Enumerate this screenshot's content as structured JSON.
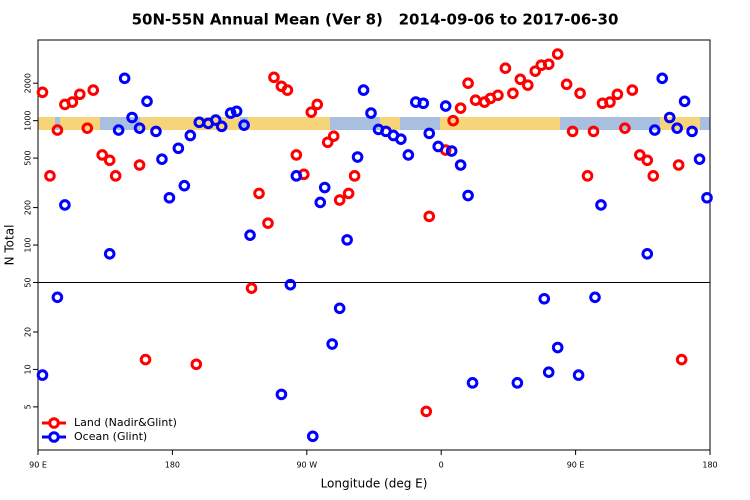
{
  "chart_data": {
    "type": "scatter",
    "title": "50N-55N Annual Mean (Ver 8)   2014-09-06 to 2017-06-30",
    "x_label": "Longitude (deg E)",
    "y_label": "N Total",
    "xlim": [
      90,
      540
    ],
    "xticks": [
      {
        "value": 90,
        "label": "90 E"
      },
      180,
      {
        "value": 270,
        "label": "90 W"
      },
      {
        "value": 360,
        "label": "0"
      },
      {
        "value": 450,
        "label": "90 E"
      },
      {
        "value": 540,
        "label": "180"
      }
    ],
    "ylim": [
      2.25,
      4450
    ],
    "log_y": true,
    "yticks": [
      5,
      10,
      20,
      50,
      100,
      200,
      500,
      1000,
      2000
    ],
    "reference_line": 50,
    "legend": "bottom left",
    "series": [
      {
        "name": "Land (Nadir&Glint)",
        "color": "#ff0000",
        "x": [
          93,
          98,
          103,
          108,
          113,
          118,
          123,
          127,
          133,
          138,
          142,
          158,
          162,
          196,
          233,
          238,
          244,
          248,
          253,
          257,
          263,
          268,
          273,
          277,
          284,
          288,
          292,
          298,
          302,
          350,
          352,
          363,
          368,
          373,
          378,
          383,
          389,
          393,
          398,
          403,
          408,
          413,
          418,
          423,
          427,
          432,
          438,
          444,
          448,
          453,
          458,
          462,
          468,
          473,
          478,
          483,
          488,
          493,
          498,
          502,
          519,
          521
        ],
        "values": [
          1690,
          360,
          840,
          1350,
          1410,
          1630,
          870,
          1760,
          530,
          480,
          360,
          440,
          12,
          11,
          45,
          260,
          150,
          2230,
          1890,
          1760,
          530,
          370,
          1170,
          1350,
          670,
          750,
          230,
          260,
          360,
          4.6,
          170,
          580,
          1000,
          1260,
          2000,
          1460,
          1410,
          1510,
          1600,
          2640,
          1660,
          2150,
          1930,
          2500,
          2790,
          2840,
          3430,
          1960,
          820,
          1660,
          360,
          820,
          1380,
          1410,
          1630,
          870,
          1760,
          530,
          480,
          360,
          440,
          12
        ]
      },
      {
        "name": "Ocean (Glint)",
        "color": "#0000ff",
        "x": [
          93,
          103,
          108,
          138,
          144,
          148,
          153,
          158,
          163,
          169,
          173,
          178,
          184,
          188,
          192,
          198,
          204,
          209,
          213,
          219,
          223,
          228,
          232,
          253,
          259,
          263,
          274,
          279,
          282,
          287,
          292,
          297,
          304,
          308,
          313,
          318,
          323,
          328,
          333,
          338,
          343,
          348,
          352,
          358,
          363,
          367,
          373,
          378,
          381,
          411,
          429,
          432,
          438,
          452,
          463,
          467,
          498,
          503,
          508,
          513,
          518,
          523,
          528,
          533,
          538
        ],
        "values": [
          9.0,
          38,
          210,
          85,
          840,
          2190,
          1060,
          870,
          1430,
          820,
          490,
          240,
          600,
          300,
          760,
          970,
          950,
          1010,
          900,
          1150,
          1190,
          920,
          120,
          6.3,
          48,
          360,
          2.9,
          220,
          290,
          16,
          31,
          110,
          510,
          1760,
          1150,
          850,
          820,
          760,
          710,
          530,
          1410,
          1380,
          790,
          620,
          1310,
          570,
          440,
          250,
          7.8,
          7.8,
          37,
          9.5,
          15,
          9.0,
          38,
          210,
          85,
          840,
          2190,
          1060,
          870,
          1430,
          820,
          490,
          240
        ]
      }
    ]
  }
}
